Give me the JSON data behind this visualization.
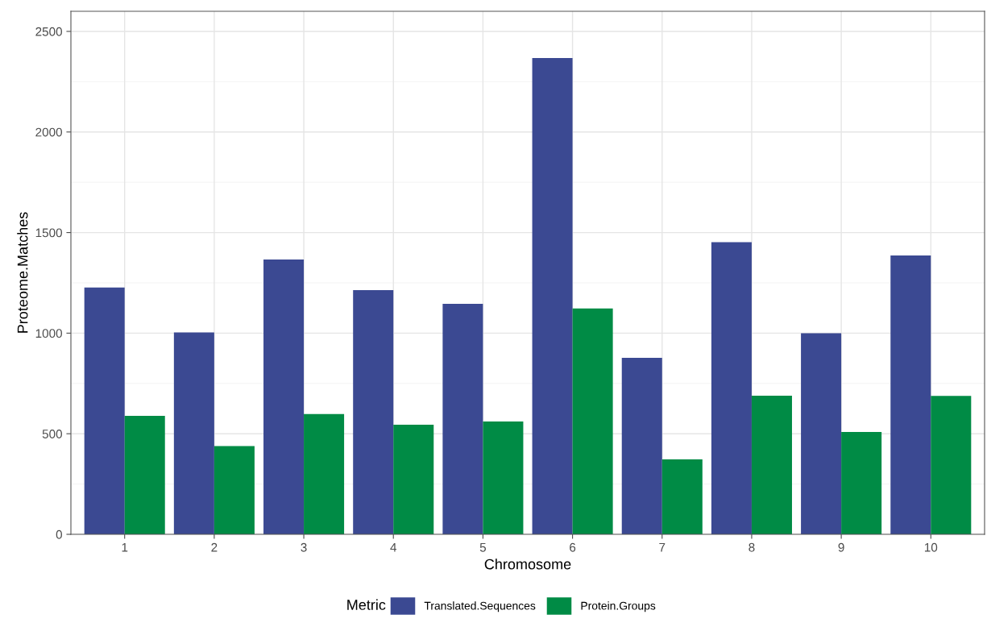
{
  "chart_data": {
    "type": "bar",
    "xlabel": "Chromosome",
    "ylabel": "Proteome.Matches",
    "legend_title": "Metric",
    "categories": [
      "1",
      "2",
      "3",
      "4",
      "5",
      "6",
      "7",
      "8",
      "9",
      "10"
    ],
    "series": [
      {
        "name": "Translated.Sequences",
        "color": "#3b4992",
        "values": [
          1227,
          1004,
          1366,
          1214,
          1146,
          2368,
          877,
          1452,
          1000,
          1386
        ]
      },
      {
        "name": "Protein.Groups",
        "color": "#008b45",
        "values": [
          589,
          439,
          598,
          545,
          561,
          1123,
          373,
          689,
          509,
          688
        ]
      }
    ],
    "ylim": [
      0,
      2600
    ],
    "yticks": [
      0,
      500,
      1000,
      1500,
      2000,
      2500
    ],
    "grid": true,
    "legend": "bottom"
  }
}
